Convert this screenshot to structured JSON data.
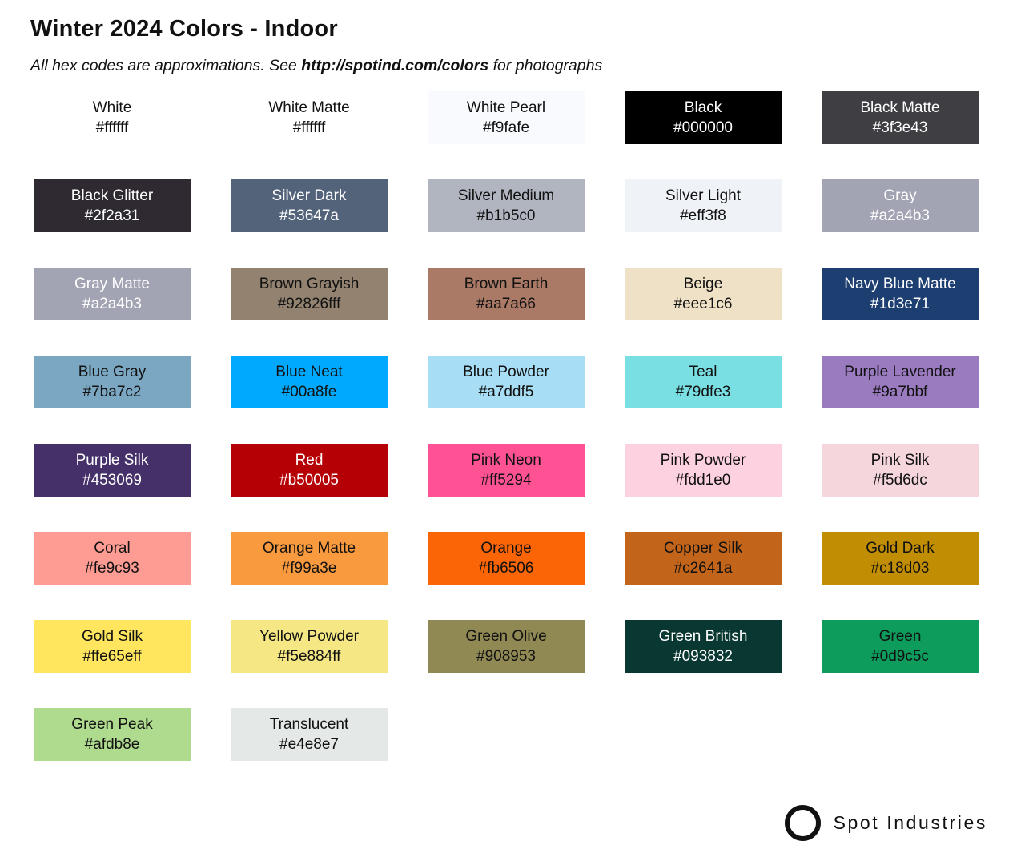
{
  "header": {
    "title": "Winter 2024 Colors - Indoor",
    "subtitle_prefix": "All hex codes are approximations. See ",
    "subtitle_link": "http://spotind.com/colors",
    "subtitle_suffix": " for photographs"
  },
  "footer": {
    "brand": "Spot Industries",
    "logo_icon": "ring-icon",
    "logo_color": "#111111"
  },
  "chart_data": {
    "type": "table",
    "title": "Winter 2024 Colors - Indoor",
    "columns": 5,
    "layout": "grid of color swatches, name over hex code, row-major order",
    "swatches": [
      {
        "name": "White",
        "hex": "#ffffff",
        "bg": "#ffffff",
        "text": "#111111"
      },
      {
        "name": "White Matte",
        "hex": "#ffffff",
        "bg": "#ffffff",
        "text": "#111111"
      },
      {
        "name": "White Pearl",
        "hex": "#f9fafe",
        "bg": "#f9fafe",
        "text": "#111111"
      },
      {
        "name": "Black",
        "hex": "#000000",
        "bg": "#000000",
        "text": "#ffffff"
      },
      {
        "name": "Black Matte",
        "hex": "#3f3e43",
        "bg": "#3f3e43",
        "text": "#ffffff"
      },
      {
        "name": "Black Glitter",
        "hex": "#2f2a31",
        "bg": "#2f2a31",
        "text": "#ffffff",
        "texture": "glitter"
      },
      {
        "name": "Silver Dark",
        "hex": "#53647a",
        "bg": "#53647a",
        "text": "#ffffff"
      },
      {
        "name": "Silver Medium",
        "hex": "#b1b5c0",
        "bg": "#b1b5c0",
        "text": "#111111"
      },
      {
        "name": "Silver Light",
        "hex": "#eff3f8",
        "bg": "#eff3f8",
        "text": "#111111"
      },
      {
        "name": "Gray",
        "hex": "#a2a4b3",
        "bg": "#a2a4b3",
        "text": "#ffffff"
      },
      {
        "name": "Gray Matte",
        "hex": "#a2a4b3",
        "bg": "#a2a4b3",
        "text": "#ffffff"
      },
      {
        "name": "Brown Grayish",
        "hex": "#92826fff",
        "bg": "#92826f",
        "text": "#111111"
      },
      {
        "name": "Brown Earth",
        "hex": "#aa7a66",
        "bg": "#aa7a66",
        "text": "#111111"
      },
      {
        "name": "Beige",
        "hex": "#eee1c6",
        "bg": "#eee1c6",
        "text": "#111111"
      },
      {
        "name": "Navy Blue Matte",
        "hex": "#1d3e71",
        "bg": "#1d3e71",
        "text": "#ffffff"
      },
      {
        "name": "Blue Gray",
        "hex": "#7ba7c2",
        "bg": "#7ba7c2",
        "text": "#111111"
      },
      {
        "name": "Blue Neat",
        "hex": "#00a8fe",
        "bg": "#00a8fe",
        "text": "#111111"
      },
      {
        "name": "Blue Powder",
        "hex": "#a7ddf5",
        "bg": "#a7ddf5",
        "text": "#111111"
      },
      {
        "name": "Teal",
        "hex": "#79dfe3",
        "bg": "#79dfe3",
        "text": "#111111"
      },
      {
        "name": "Purple Lavender",
        "hex": "#9a7bbf",
        "bg": "#9a7bbf",
        "text": "#111111"
      },
      {
        "name": "Purple Silk",
        "hex": "#453069",
        "bg": "#453069",
        "text": "#ffffff"
      },
      {
        "name": "Red",
        "hex": "#b50005",
        "bg": "#b50005",
        "text": "#ffffff"
      },
      {
        "name": "Pink Neon",
        "hex": "#ff5294",
        "bg": "#ff5294",
        "text": "#111111"
      },
      {
        "name": "Pink Powder",
        "hex": "#fdd1e0",
        "bg": "#fdd1e0",
        "text": "#111111"
      },
      {
        "name": "Pink Silk",
        "hex": "#f5d6dc",
        "bg": "#f5d6dc",
        "text": "#111111"
      },
      {
        "name": "Coral",
        "hex": "#fe9c93",
        "bg": "#fe9c93",
        "text": "#111111"
      },
      {
        "name": "Orange Matte",
        "hex": "#f99a3e",
        "bg": "#f99a3e",
        "text": "#111111"
      },
      {
        "name": "Orange",
        "hex": "#fb6506",
        "bg": "#fb6506",
        "text": "#111111"
      },
      {
        "name": "Copper Silk",
        "hex": "#c2641a",
        "bg": "#c2641a",
        "text": "#111111"
      },
      {
        "name": "Gold Dark",
        "hex": "#c18d03",
        "bg": "#c18d03",
        "text": "#111111"
      },
      {
        "name": "Gold Silk",
        "hex": "#ffe65eff",
        "bg": "#ffe65e",
        "text": "#111111"
      },
      {
        "name": "Yellow Powder",
        "hex": "#f5e884ff",
        "bg": "#f5e884",
        "text": "#111111"
      },
      {
        "name": "Green Olive",
        "hex": "#908953",
        "bg": "#908953",
        "text": "#111111"
      },
      {
        "name": "Green British",
        "hex": "#093832",
        "bg": "#093832",
        "text": "#ffffff"
      },
      {
        "name": "Green",
        "hex": "#0d9c5c",
        "bg": "#0d9c5c",
        "text": "#111111"
      },
      {
        "name": "Green Peak",
        "hex": "#afdb8e",
        "bg": "#afdb8e",
        "text": "#111111"
      },
      {
        "name": "Translucent",
        "hex": "#e4e8e7",
        "bg": "#e4e8e7",
        "text": "#111111"
      }
    ]
  }
}
